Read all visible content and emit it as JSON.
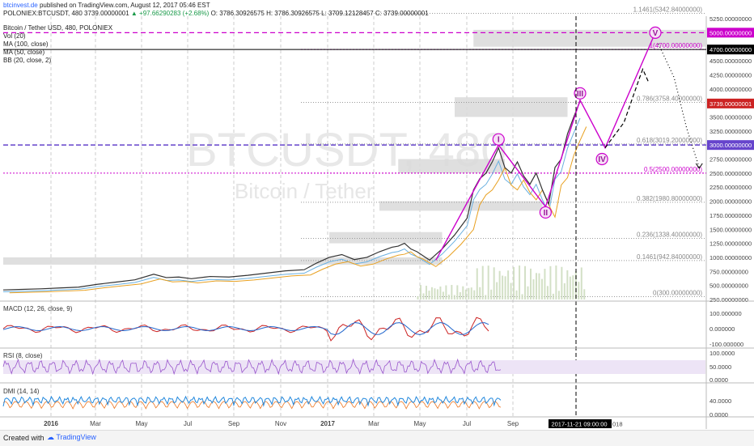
{
  "header": {
    "author": "btcinvest.de",
    "published": "published on TradingView.com, August 12, 2017 05:46 EST",
    "symbol": "POLONIEX:BTCUSDT, 480",
    "last": "3739.00000001",
    "change": "▲ +97.66290283 (+2.68%)",
    "ohlc": "O: 3786.30926575  H: 3786.30926575  L: 3709.12128457  C: 3739.00000001",
    "title": "Bitcoin / Tether USD, 480, POLONIEX",
    "indicators": [
      "Vol (20)",
      "MA (100, close)",
      "MA (50, close)",
      "BB (20, close, 2)"
    ]
  },
  "watermark": {
    "symbol": "BTCUSDT, 480",
    "name": "Bitcoin / Tether"
  },
  "footer": {
    "created": "Created with",
    "brand": "TradingView"
  },
  "colors": {
    "price": "#333333",
    "magenta": "#cc00cc",
    "fib": "#888888",
    "red": "#cc2222",
    "rsi": "#9955cc",
    "dmi_plus": "#2288dd",
    "dmi_minus": "#ee7722"
  },
  "chart_data": {
    "type": "line",
    "price_axis": {
      "ylim": [
        250,
        5250
      ],
      "ticks": [
        "5250.00000000",
        "5000.00000000",
        "4750.00000000",
        "4500.00000000",
        "4250.00000000",
        "4000.00000000",
        "3750.00000000",
        "3500.00000000",
        "3250.00000000",
        "3000.00000000",
        "2750.00000000",
        "2500.00000000",
        "2250.00000000",
        "2000.00000000",
        "1750.00000000",
        "1500.00000000",
        "1250.00000000",
        "1000.00000000",
        "750.00000000",
        "500.00000000",
        "250.00000000"
      ],
      "tick_values": [
        5250,
        5000,
        4750,
        4500,
        4250,
        4000,
        3750,
        3500,
        3250,
        3000,
        2750,
        2500,
        2250,
        2000,
        1750,
        1500,
        1250,
        1000,
        750,
        500,
        250
      ],
      "price_labels": [
        {
          "value": 5000,
          "text": "5000.00000000",
          "color": "#cc00cc"
        },
        {
          "value": 4700,
          "text": "4700.00000000",
          "color": "#000000"
        },
        {
          "value": 3739,
          "text": "3739.00000001",
          "color": "#cc2222"
        },
        {
          "value": 3000,
          "text": "3000.00000000",
          "color": "#6644cc"
        }
      ]
    },
    "fib_levels": [
      {
        "value": 5342.84,
        "text": "1.1461(5342.84000000)"
      },
      {
        "value": 4700,
        "text": "1(4700.00000000)"
      },
      {
        "value": 3758.4,
        "text": "0.786(3758.40000000)"
      },
      {
        "value": 3019.2,
        "text": "0.618(3019.20000000)"
      },
      {
        "value": 2500,
        "text": "0.5(2500.00000000)"
      },
      {
        "value": 1980.8,
        "text": "0.382(1980.80000000)"
      },
      {
        "value": 1338.4,
        "text": "0.236(1338.40000000)"
      },
      {
        "value": 942.84,
        "text": "0.1461(942.84000000)"
      },
      {
        "value": 300,
        "text": "0(300.00000000)"
      }
    ],
    "time_axis": [
      "2016",
      "Mar",
      "May",
      "Jul",
      "Sep",
      "Nov",
      "2017",
      "Mar",
      "May",
      "Jul",
      "Sep"
    ],
    "time_cursor": "2017-11-21 09:00:00",
    "time_cursor_suffix": "018",
    "price_series": [
      [
        0,
        420
      ],
      [
        3,
        430
      ],
      [
        6,
        440
      ],
      [
        9,
        455
      ],
      [
        12,
        470
      ],
      [
        15,
        520
      ],
      [
        18,
        560
      ],
      [
        21,
        600
      ],
      [
        24,
        700
      ],
      [
        26,
        640
      ],
      [
        28,
        650
      ],
      [
        30,
        620
      ],
      [
        33,
        660
      ],
      [
        36,
        650
      ],
      [
        39,
        680
      ],
      [
        42,
        720
      ],
      [
        45,
        760
      ],
      [
        48,
        780
      ],
      [
        50,
        900
      ],
      [
        52,
        1000
      ],
      [
        54,
        1050
      ],
      [
        56,
        960
      ],
      [
        58,
        1000
      ],
      [
        60,
        1100
      ],
      [
        62,
        1180
      ],
      [
        63,
        1200
      ],
      [
        64,
        1250
      ],
      [
        65,
        1150
      ],
      [
        66,
        1100
      ],
      [
        68,
        950
      ],
      [
        69,
        1050
      ],
      [
        70,
        1150
      ],
      [
        72,
        1400
      ],
      [
        74,
        1700
      ],
      [
        75,
        2200
      ],
      [
        76,
        2400
      ],
      [
        77,
        2500
      ],
      [
        78,
        2700
      ],
      [
        79,
        2950
      ],
      [
        80,
        2600
      ],
      [
        81,
        2500
      ],
      [
        82,
        2700
      ],
      [
        83,
        2450
      ],
      [
        84,
        2300
      ],
      [
        85,
        2500
      ],
      [
        86,
        2200
      ],
      [
        87,
        1950
      ],
      [
        88,
        2600
      ],
      [
        89,
        2750
      ],
      [
        90,
        3200
      ],
      [
        91,
        3500
      ],
      [
        92,
        3780
      ]
    ],
    "wave_labels": [
      {
        "label": "I",
        "x": 79,
        "value": 3100
      },
      {
        "label": "II",
        "x": 86.5,
        "value": 1800
      },
      {
        "label": "III",
        "x": 92,
        "value": 3920
      },
      {
        "label": "IV",
        "x": 95.5,
        "value": 2750
      },
      {
        "label": "V",
        "x": 104,
        "value": 5000
      }
    ],
    "wave_path": [
      [
        69,
        950
      ],
      [
        79,
        3000
      ],
      [
        86.5,
        1900
      ],
      [
        92,
        3800
      ],
      [
        96,
        2950
      ],
      [
        104,
        5000
      ]
    ],
    "projection_dashed": [
      [
        96,
        2950
      ],
      [
        99,
        3400
      ],
      [
        101.5,
        4200
      ],
      [
        102,
        4350
      ],
      [
        103,
        4100
      ]
    ],
    "projection_dotted": [
      [
        104.5,
        4800
      ],
      [
        107,
        4200
      ],
      [
        109,
        3300
      ],
      [
        111,
        2600
      ]
    ],
    "macd": {
      "name": "MACD (12, 26, close, 9)",
      "ticks": [
        "100.000000",
        "0.000000",
        "-100.000000"
      ]
    },
    "rsi": {
      "name": "RSI (8, close)",
      "ticks": [
        "100.0000",
        "50.0000",
        "0.0000"
      ]
    },
    "dmi": {
      "name": "DMI (14, 14)",
      "ticks": [
        "40.0000",
        "0.0000"
      ]
    }
  }
}
